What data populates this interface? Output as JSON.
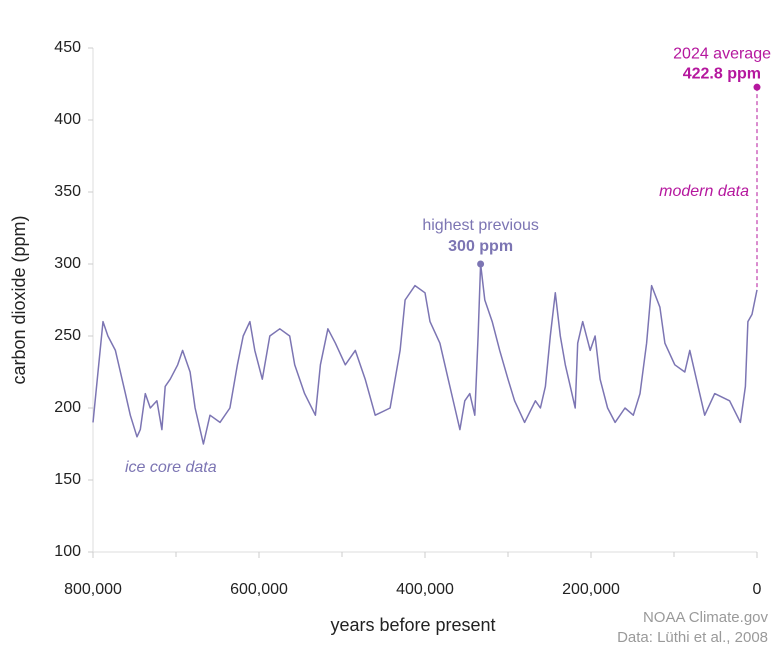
{
  "chart_data": {
    "type": "line",
    "x_label": "years before present",
    "y_label": "carbon dioxide (ppm)",
    "series_label": "ice core data",
    "color": "#7c75b3",
    "accent_color": "#b5179e",
    "x": [
      800000,
      788000,
      782000,
      773000,
      767000,
      761000,
      755000,
      747000,
      743000,
      737000,
      731000,
      723000,
      717000,
      713000,
      707000,
      698000,
      692000,
      683000,
      677000,
      671000,
      667000,
      659000,
      647000,
      635000,
      626000,
      619000,
      611000,
      605000,
      596000,
      587000,
      575000,
      563000,
      557000,
      545000,
      532000,
      526000,
      517000,
      508000,
      496000,
      484000,
      472000,
      460000,
      442000,
      430000,
      424000,
      412000,
      400000,
      394000,
      382000,
      372000,
      364000,
      358000,
      352000,
      346000,
      340000,
      336000,
      333000,
      328000,
      319000,
      310000,
      300000,
      292000,
      280000,
      267000,
      261000,
      255000,
      249000,
      243000,
      237000,
      231000,
      225000,
      219000,
      216000,
      210000,
      201000,
      195000,
      189000,
      180000,
      171000,
      159000,
      149000,
      141000,
      133000,
      127000,
      117000,
      111000,
      99000,
      87000,
      81000,
      69000,
      63000,
      51000,
      33000,
      20000,
      14000,
      11000,
      6000,
      0
    ],
    "values": [
      190,
      260,
      250,
      240,
      225,
      210,
      195,
      180,
      185,
      210,
      200,
      205,
      185,
      215,
      220,
      230,
      240,
      225,
      200,
      185,
      175,
      195,
      190,
      200,
      230,
      250,
      260,
      240,
      220,
      250,
      255,
      250,
      230,
      210,
      195,
      230,
      255,
      245,
      230,
      240,
      220,
      195,
      200,
      240,
      275,
      285,
      280,
      260,
      245,
      220,
      200,
      185,
      205,
      210,
      195,
      250,
      300,
      275,
      260,
      240,
      220,
      205,
      190,
      205,
      200,
      215,
      250,
      280,
      250,
      230,
      215,
      200,
      245,
      260,
      240,
      250,
      220,
      200,
      190,
      200,
      195,
      210,
      245,
      285,
      270,
      245,
      230,
      225,
      240,
      210,
      195,
      210,
      205,
      190,
      215,
      260,
      265,
      282
    ],
    "xlim": [
      800000,
      0
    ],
    "ylim": [
      100,
      450
    ],
    "xticks": [
      {
        "value": 800000,
        "label": "800,000"
      },
      {
        "value": 600000,
        "label": "600,000"
      },
      {
        "value": 400000,
        "label": "400,000"
      },
      {
        "value": 200000,
        "label": "200,000"
      },
      0
    ],
    "xminor": [
      700000,
      500000,
      300000,
      100000
    ],
    "yticks": [
      100,
      150,
      200,
      250,
      300,
      350,
      400,
      450
    ],
    "peak": {
      "label": "highest previous",
      "value_label": "300 ppm",
      "x": 333000,
      "value": 300
    },
    "modern": {
      "label": "2024 average",
      "value_label": "422.8 ppm",
      "x": 0,
      "value": 422.8,
      "note": "modern data"
    },
    "source": [
      "NOAA Climate.gov",
      "Data: Lüthi et al., 2008"
    ]
  }
}
